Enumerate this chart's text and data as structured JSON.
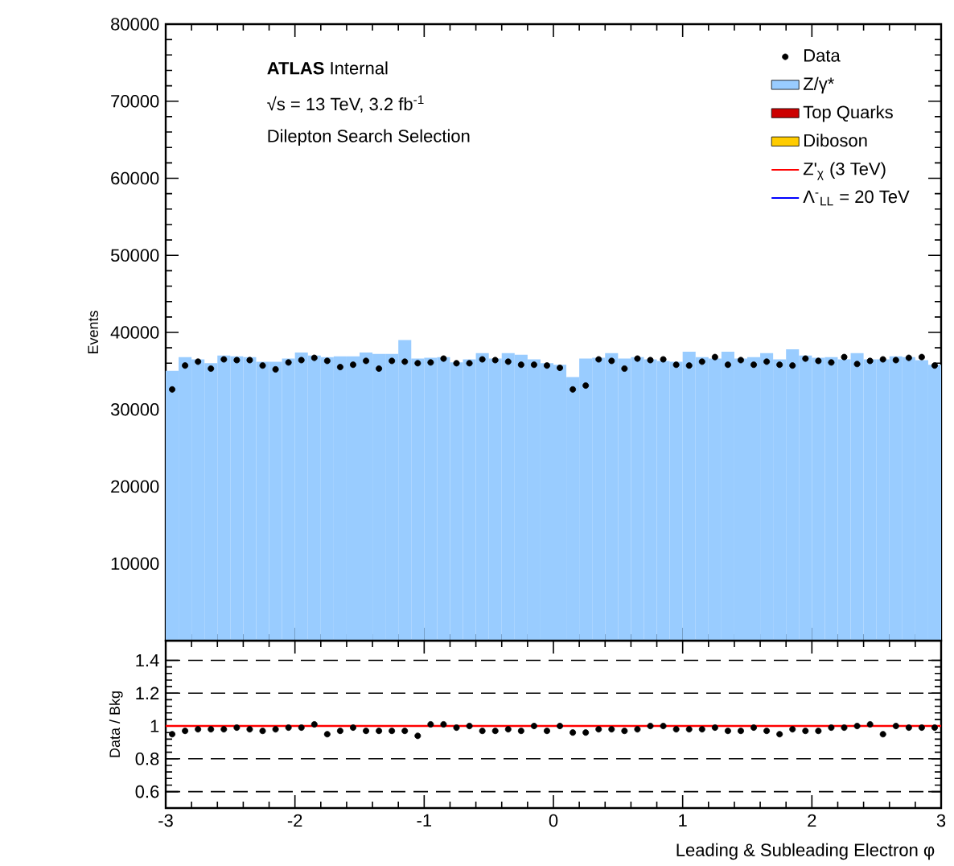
{
  "chart_data": [
    {
      "type": "histogram",
      "ylabel": "Events",
      "annotations": [
        "**ATLAS** Internal",
        "√s = 13 TeV, 3.2 fb$^{-1}$",
        "Dilepton Search Selection"
      ],
      "bins": [
        -3.0,
        -2.9,
        -2.8,
        -2.7,
        -2.6,
        -2.5,
        -2.4,
        -2.3,
        -2.2,
        -2.1,
        -2.0,
        -1.9,
        -1.8,
        -1.7,
        -1.6,
        -1.5,
        -1.4,
        -1.3,
        -1.2,
        -1.1,
        -1.0,
        -0.9,
        -0.8,
        -0.7,
        -0.6,
        -0.5,
        -0.4,
        -0.3,
        -0.2,
        -0.1,
        0.0,
        0.1,
        0.2,
        0.3,
        0.4,
        0.5,
        0.6,
        0.7,
        0.8,
        0.9,
        1.0,
        1.1,
        1.2,
        1.3,
        1.4,
        1.5,
        1.6,
        1.7,
        1.8,
        1.9,
        2.0,
        2.1,
        2.2,
        2.3,
        2.4,
        2.5,
        2.6,
        2.7,
        2.8,
        2.9,
        3.0
      ],
      "series": [
        {
          "name": "Data",
          "type": "scatter",
          "color": "#000000",
          "x": [
            -2.95,
            -2.85,
            -2.75,
            -2.65,
            -2.55,
            -2.45,
            -2.35,
            -2.25,
            -2.15,
            -2.05,
            -1.95,
            -1.85,
            -1.75,
            -1.65,
            -1.55,
            -1.45,
            -1.35,
            -1.25,
            -1.15,
            -1.05,
            -0.95,
            -0.85,
            -0.75,
            -0.65,
            -0.55,
            -0.45,
            -0.35,
            -0.25,
            -0.15,
            -0.05,
            0.05,
            0.15,
            0.25,
            0.35,
            0.45,
            0.55,
            0.65,
            0.75,
            0.85,
            0.95,
            1.05,
            1.15,
            1.25,
            1.35,
            1.45,
            1.55,
            1.65,
            1.75,
            1.85,
            1.95,
            2.05,
            2.15,
            2.25,
            2.35,
            2.45,
            2.55,
            2.65,
            2.75,
            2.85,
            2.95
          ],
          "values": [
            32600,
            35700,
            36200,
            35300,
            36500,
            36400,
            36400,
            35700,
            35200,
            36100,
            36400,
            36700,
            36300,
            35500,
            35800,
            36300,
            35300,
            36300,
            36200,
            36000,
            36100,
            36600,
            36000,
            36000,
            36500,
            36400,
            36200,
            35800,
            35800,
            35700,
            35400,
            32600,
            33100,
            36500,
            36300,
            35300,
            36600,
            36400,
            36500,
            35800,
            35700,
            36200,
            36800,
            35800,
            36400,
            35800,
            36200,
            35800,
            35700,
            36600,
            36300,
            36100,
            36800,
            35900,
            36300,
            36500,
            36400,
            36700,
            36800,
            35700
          ]
        },
        {
          "name": "Z/γ*",
          "type": "histogram",
          "color": "#99ccff",
          "values": [
            35000,
            36800,
            36500,
            36000,
            37000,
            36900,
            36800,
            36200,
            36200,
            36600,
            37400,
            37000,
            36800,
            36900,
            36900,
            37400,
            37200,
            37200,
            39000,
            36600,
            36700,
            36800,
            36100,
            36500,
            37300,
            36600,
            37300,
            37100,
            36500,
            36000,
            35800,
            34200,
            36600,
            36700,
            37300,
            36600,
            36800,
            36500,
            36300,
            36200,
            37500,
            36800,
            36600,
            37500,
            36600,
            36800,
            37300,
            36500,
            37800,
            37000,
            36700,
            36800,
            36500,
            37300,
            36500,
            36500,
            36900,
            36800,
            36400,
            35800
          ]
        },
        {
          "name": "Top Quarks",
          "type": "area",
          "color": "#cc0000"
        },
        {
          "name": "Diboson",
          "type": "area",
          "color": "#ffcc00"
        },
        {
          "name": "Z'$_{χ}$ (3 TeV)",
          "type": "line",
          "color": "#ff0000"
        },
        {
          "name": "Λ$^{-}$$_{LL}$ = 20 TeV",
          "type": "line",
          "color": "#0000ff"
        }
      ],
      "legend": "top right",
      "xlim": [
        -3,
        3
      ],
      "xticks": [
        -3,
        -2,
        -1,
        0,
        1,
        2,
        3
      ],
      "ylim": [
        0,
        80000
      ],
      "yticks": [
        10000,
        20000,
        30000,
        40000,
        50000,
        60000,
        70000,
        80000
      ],
      "tick_labels": "y"
    },
    {
      "type": "scatter",
      "xlabel": "Leading & Subleading Electron φ",
      "ylabel": "Data / Bkg",
      "color": "#000000",
      "x": [
        -2.95,
        -2.85,
        -2.75,
        -2.65,
        -2.55,
        -2.45,
        -2.35,
        -2.25,
        -2.15,
        -2.05,
        -1.95,
        -1.85,
        -1.75,
        -1.65,
        -1.55,
        -1.45,
        -1.35,
        -1.25,
        -1.15,
        -1.05,
        -0.95,
        -0.85,
        -0.75,
        -0.65,
        -0.55,
        -0.45,
        -0.35,
        -0.25,
        -0.15,
        -0.05,
        0.05,
        0.15,
        0.25,
        0.35,
        0.45,
        0.55,
        0.65,
        0.75,
        0.85,
        0.95,
        1.05,
        1.15,
        1.25,
        1.35,
        1.45,
        1.55,
        1.65,
        1.75,
        1.85,
        1.95,
        2.05,
        2.15,
        2.25,
        2.35,
        2.45,
        2.55,
        2.65,
        2.75,
        2.85,
        2.95
      ],
      "values": [
        0.95,
        0.97,
        0.98,
        0.98,
        0.98,
        0.99,
        0.98,
        0.97,
        0.98,
        0.99,
        0.99,
        1.01,
        0.95,
        0.97,
        0.99,
        0.97,
        0.97,
        0.97,
        0.97,
        0.94,
        1.01,
        1.01,
        0.99,
        1.0,
        0.97,
        0.97,
        0.98,
        0.97,
        1.0,
        0.97,
        1.0,
        0.96,
        0.96,
        0.98,
        0.98,
        0.97,
        0.98,
        1.0,
        1.0,
        0.98,
        0.98,
        0.98,
        0.99,
        0.97,
        0.97,
        0.99,
        0.97,
        0.95,
        0.98,
        0.97,
        0.97,
        0.99,
        0.99,
        1.0,
        1.01,
        0.95,
        1.0,
        0.99,
        0.99,
        0.99
      ],
      "xlim": [
        -3,
        3
      ],
      "xticks": [
        -3,
        -2,
        -1,
        0,
        1,
        2,
        3
      ],
      "ylim": [
        0.5,
        1.52
      ],
      "yticks": [
        0.6,
        0.8,
        1,
        1.2,
        1.4
      ],
      "grid": "y",
      "ref_lines": [
        {
          "axis": "y",
          "value": 1,
          "color": "#ff0000"
        }
      ]
    }
  ]
}
